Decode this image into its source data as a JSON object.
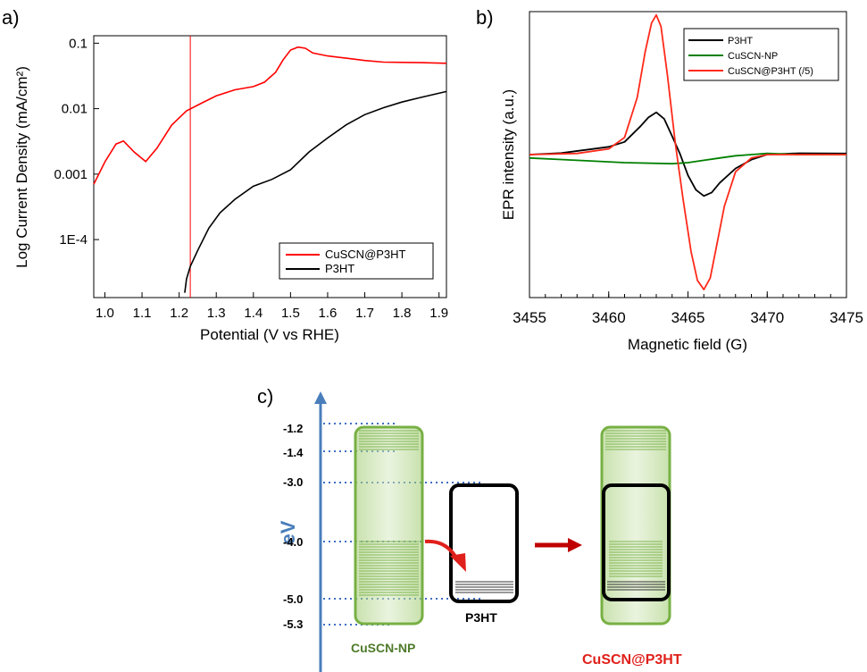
{
  "chart_data": [
    {
      "id": "a",
      "panel_label": "a)",
      "type": "line",
      "xlabel": "Potential (V vs RHE)",
      "ylabel": "Log Current Density (mA/cm²)",
      "yscale": "log",
      "xlim": [
        0.97,
        1.92
      ],
      "ylim": [
        1.3e-05,
        0.13
      ],
      "x_ticks": [
        "1.0",
        "1.1",
        "1.2",
        "1.3",
        "1.4",
        "1.5",
        "1.6",
        "1.7",
        "1.8",
        "1.9"
      ],
      "y_ticks": [
        "1E-4",
        "0.001",
        "0.01",
        "0.1"
      ],
      "vertical_marker_x": 1.23,
      "legend_position": "lower-right",
      "series": [
        {
          "name": "CuSCN@P3HT",
          "color": "#ff0000",
          "x": [
            0.97,
            1.0,
            1.03,
            1.05,
            1.08,
            1.11,
            1.14,
            1.18,
            1.22,
            1.26,
            1.3,
            1.35,
            1.4,
            1.43,
            1.46,
            1.48,
            1.5,
            1.52,
            1.54,
            1.56,
            1.6,
            1.65,
            1.7,
            1.75,
            1.8,
            1.85,
            1.92
          ],
          "y": [
            0.0007,
            0.0015,
            0.0028,
            0.0032,
            0.0022,
            0.0016,
            0.0025,
            0.0055,
            0.009,
            0.012,
            0.016,
            0.02,
            0.022,
            0.025,
            0.035,
            0.055,
            0.08,
            0.09,
            0.085,
            0.07,
            0.062,
            0.058,
            0.055,
            0.053,
            0.052,
            0.05,
            0.048
          ]
        },
        {
          "name": "P3HT",
          "color": "#000000",
          "x": [
            1.215,
            1.22,
            1.23,
            1.25,
            1.28,
            1.31,
            1.35,
            1.4,
            1.45,
            1.5,
            1.55,
            1.6,
            1.65,
            1.7,
            1.75,
            1.8,
            1.85,
            1.92
          ],
          "y": [
            1.5e-05,
            2.5e-05,
            4e-05,
            7e-05,
            0.00015,
            0.00025,
            0.0004,
            0.00065,
            0.00085,
            0.0012,
            0.0022,
            0.0035,
            0.0055,
            0.008,
            0.0105,
            0.013,
            0.015,
            0.018
          ]
        }
      ]
    },
    {
      "id": "b",
      "panel_label": "b)",
      "type": "line",
      "xlabel": "Magnetic field (G)",
      "ylabel": "EPR intensity (a.u.)",
      "xlim": [
        3455,
        3475
      ],
      "ylim": [
        -1.25,
        1.25
      ],
      "x_ticks": [
        "3455",
        "3460",
        "3465",
        "3470",
        "3475"
      ],
      "legend_position": "top-right",
      "series": [
        {
          "name": "P3HT",
          "color": "#000000",
          "x": [
            3455,
            3457,
            3459,
            3460,
            3461,
            3462,
            3462.5,
            3463,
            3463.5,
            3464,
            3464.5,
            3465,
            3465.5,
            3466,
            3466.5,
            3467,
            3468,
            3469,
            3470,
            3472,
            3475
          ],
          "y": [
            0.0,
            0.02,
            0.06,
            0.08,
            0.12,
            0.25,
            0.32,
            0.36,
            0.3,
            0.15,
            0.0,
            -0.18,
            -0.3,
            -0.35,
            -0.32,
            -0.24,
            -0.12,
            -0.05,
            -0.01,
            0.0,
            0.0
          ]
        },
        {
          "name": "CuSCN-NP",
          "color": "#008000",
          "x": [
            3455,
            3458,
            3461,
            3464,
            3465,
            3466,
            3467,
            3468,
            3469,
            3470,
            3472,
            3475
          ],
          "y": [
            -0.03,
            -0.05,
            -0.07,
            -0.08,
            -0.07,
            -0.05,
            -0.03,
            -0.01,
            0.0,
            0.01,
            0.0,
            0.0
          ]
        },
        {
          "name": "CuSCN@P3HT (/5)",
          "color": "#ff2a1a",
          "x": [
            3455,
            3458,
            3460,
            3461,
            3461.8,
            3462.3,
            3462.7,
            3463,
            3463.3,
            3463.7,
            3464.2,
            3464.7,
            3465.2,
            3465.6,
            3466,
            3466.4,
            3466.8,
            3467.3,
            3468,
            3469,
            3470,
            3475
          ],
          "y": [
            0.0,
            0.01,
            0.05,
            0.15,
            0.5,
            0.9,
            1.15,
            1.22,
            1.12,
            0.7,
            0.1,
            -0.4,
            -0.85,
            -1.1,
            -1.18,
            -1.08,
            -0.8,
            -0.45,
            -0.15,
            -0.03,
            0.0,
            0.0
          ]
        }
      ]
    },
    {
      "id": "c",
      "panel_label": "c)",
      "type": "diagram",
      "axis_label": "eV",
      "energy_levels": [
        "-1.2",
        "-1.4",
        "-3.0",
        "-4.0",
        "-5.0",
        "-5.3"
      ],
      "labels": [
        "CuSCN-NP",
        "P3HT",
        "CuSCN@P3HT"
      ],
      "colors": {
        "cuscn": "#6aaa3a",
        "p3ht": "#000000",
        "composite_label": "#e0201b",
        "axis": "#4a7ebb",
        "arrow": "#c00000"
      }
    }
  ]
}
